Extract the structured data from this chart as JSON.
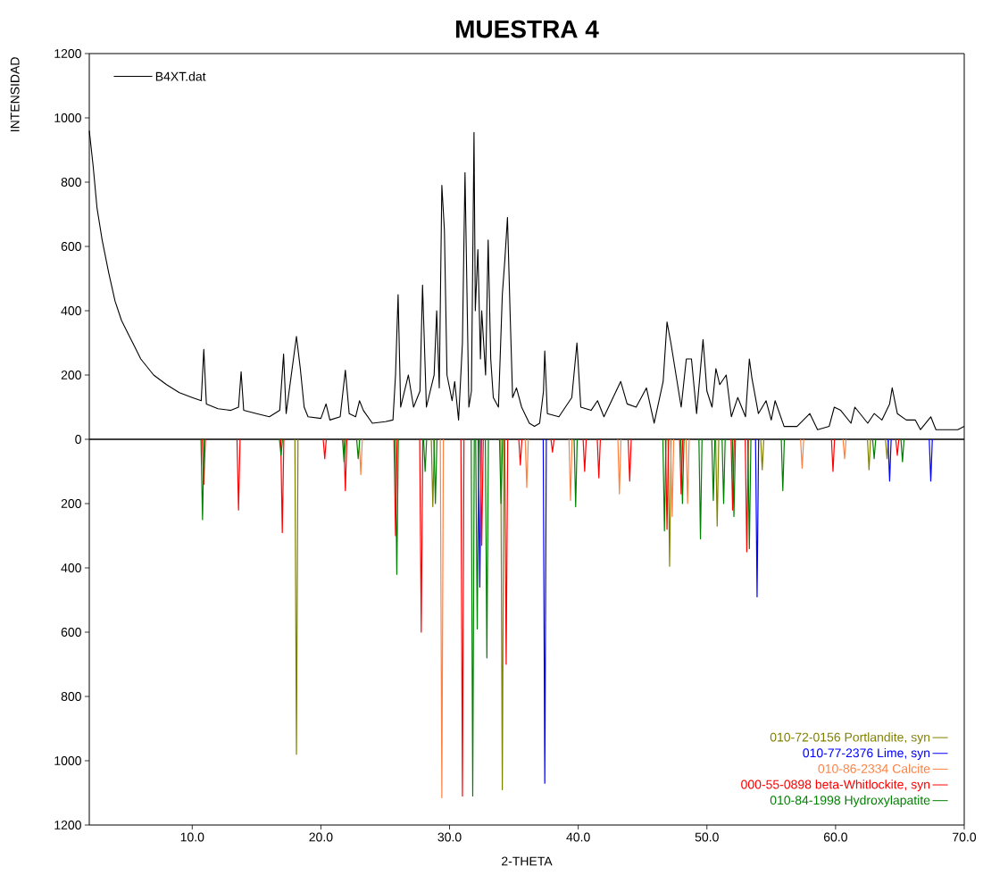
{
  "chart_data": {
    "type": "line",
    "title": "MUESTRA 4",
    "xlabel": "2-THETA",
    "ylabel": "INTENSIDAD",
    "xlim": [
      2,
      70
    ],
    "ylim": [
      -1200,
      1200
    ],
    "xticks": [
      {
        "value": 10,
        "label": "10.0"
      },
      {
        "value": 20,
        "label": "20.0"
      },
      {
        "value": 30,
        "label": "30.0"
      },
      {
        "value": 40,
        "label": "40.0"
      },
      {
        "value": 50,
        "label": "50.0"
      },
      {
        "value": 60,
        "label": "60.0"
      },
      {
        "value": 70,
        "label": "70.0"
      }
    ],
    "yticks": [
      {
        "value": -1200,
        "label": "1200"
      },
      {
        "value": -1000,
        "label": "1000"
      },
      {
        "value": -800,
        "label": "800"
      },
      {
        "value": -600,
        "label": "600"
      },
      {
        "value": -400,
        "label": "400"
      },
      {
        "value": -200,
        "label": "200"
      },
      0,
      200,
      400,
      600,
      800,
      1000,
      1200
    ],
    "legend": "bottom right",
    "grid": false,
    "marker": "none",
    "line_style": "solid",
    "ref_lines": [
      {
        "axis": "y",
        "value": 0,
        "color": "#000000"
      }
    ],
    "series": [
      {
        "name": "B4XT.dat",
        "color": "#000000",
        "x": [
          2.0,
          2.3,
          2.6,
          3.0,
          3.5,
          4.0,
          4.5,
          5.0,
          5.5,
          6,
          7,
          8,
          9,
          10,
          10.7,
          10.9,
          11.1,
          12,
          13,
          13.6,
          13.8,
          14,
          15,
          16,
          16.8,
          17.1,
          17.3,
          17.7,
          18.1,
          18.4,
          18.7,
          19,
          20,
          20.4,
          20.7,
          21.5,
          21.9,
          22.2,
          22.7,
          23.0,
          23.3,
          24,
          25,
          25.6,
          25.8,
          26.0,
          26.2,
          26.8,
          27.2,
          27.7,
          27.9,
          28.2,
          28.8,
          29.0,
          29.2,
          29.4,
          29.6,
          29.8,
          30.2,
          30.4,
          30.7,
          31.0,
          31.2,
          31.5,
          31.7,
          31.9,
          32.0,
          32.2,
          32.4,
          32.5,
          32.8,
          33.0,
          33.2,
          33.4,
          33.8,
          34.1,
          34.3,
          34.5,
          34.7,
          34.9,
          35.2,
          35.6,
          36.2,
          36.6,
          37.0,
          37.3,
          37.4,
          37.6,
          38.5,
          39.5,
          39.9,
          40.2,
          41,
          41.5,
          42,
          43.3,
          43.8,
          44.5,
          45.3,
          45.9,
          46.6,
          46.9,
          47.2,
          47.6,
          48.0,
          48.4,
          48.8,
          49.2,
          49.7,
          50.0,
          50.4,
          50.7,
          51.0,
          51.5,
          51.9,
          52.4,
          53.0,
          53.3,
          53.5,
          54,
          54.6,
          55,
          55.3,
          56,
          57,
          58,
          58.6,
          59.5,
          59.9,
          60.4,
          61.2,
          61.5,
          62.5,
          63.0,
          63.6,
          64.2,
          64.4,
          64.8,
          65.5,
          66.2,
          66.6,
          67.4,
          67.8,
          68.5,
          69.5,
          70
        ],
        "values": [
          960,
          850,
          720,
          620,
          520,
          430,
          370,
          330,
          290,
          250,
          200,
          170,
          145,
          130,
          120,
          280,
          110,
          95,
          90,
          100,
          210,
          90,
          80,
          70,
          90,
          265,
          80,
          200,
          320,
          220,
          100,
          70,
          65,
          110,
          60,
          70,
          215,
          80,
          70,
          120,
          90,
          50,
          55,
          60,
          200,
          450,
          100,
          200,
          100,
          150,
          480,
          100,
          200,
          400,
          160,
          790,
          650,
          200,
          120,
          180,
          60,
          300,
          830,
          100,
          150,
          955,
          400,
          590,
          250,
          400,
          200,
          620,
          250,
          130,
          100,
          450,
          560,
          690,
          400,
          130,
          160,
          100,
          50,
          40,
          50,
          150,
          275,
          80,
          70,
          130,
          300,
          100,
          90,
          120,
          70,
          180,
          110,
          100,
          160,
          50,
          180,
          365,
          300,
          200,
          100,
          250,
          250,
          80,
          310,
          150,
          100,
          220,
          170,
          200,
          70,
          130,
          70,
          250,
          190,
          80,
          120,
          60,
          120,
          40,
          40,
          80,
          30,
          40,
          100,
          90,
          50,
          100,
          50,
          80,
          60,
          110,
          160,
          80,
          60,
          60,
          30,
          70,
          30,
          30,
          30,
          40
        ]
      },
      {
        "name": "010-72-0156 Portlandite, syn",
        "color": "#808000",
        "x": [
          17.98,
          18.1,
          18.22,
          18.23,
          28.58,
          28.7,
          28.82,
          28.83,
          33.98,
          34.1,
          34.22,
          34.23,
          46.98,
          47.1,
          47.22,
          47.23,
          50.68,
          50.8,
          50.92,
          50.93,
          54.18,
          54.3,
          54.42,
          54.43,
          62.48,
          62.6,
          62.72,
          62.73,
          63.88,
          64.0,
          64.12
        ],
        "values": [
          0,
          -980,
          0,
          null,
          0,
          -210,
          0,
          null,
          0,
          -1090,
          0,
          null,
          0,
          -395,
          0,
          null,
          0,
          -270,
          0,
          null,
          0,
          -95,
          0,
          null,
          0,
          -95,
          0,
          null,
          0,
          -60,
          0
        ]
      },
      {
        "name": "010-77-2376 Lime, syn",
        "color": "#0000ff",
        "x": [
          32.23,
          32.35,
          32.47,
          32.48,
          37.28,
          37.4,
          37.52,
          37.53,
          53.78,
          53.9,
          54.02,
          54.03,
          64.08,
          64.2,
          64.32,
          64.33,
          67.28,
          67.4,
          67.52
        ],
        "values": [
          0,
          -460,
          0,
          null,
          0,
          -1070,
          0,
          null,
          0,
          -490,
          0,
          null,
          0,
          -130,
          0,
          null,
          0,
          -130,
          0
        ]
      },
      {
        "name": "010-86-2334 Calcite",
        "color": "#ff8040",
        "x": [
          22.98,
          23.1,
          23.22,
          23.23,
          29.28,
          29.4,
          29.52,
          29.53,
          35.88,
          36.0,
          36.12,
          36.13,
          39.28,
          39.4,
          39.52,
          39.53,
          43.08,
          43.2,
          43.32,
          43.33,
          47.18,
          47.3,
          47.42,
          47.43,
          48.38,
          48.5,
          48.62,
          48.63,
          57.28,
          57.4,
          57.52,
          57.53,
          60.58,
          60.7,
          60.82
        ],
        "values": [
          0,
          -110,
          0,
          null,
          0,
          -1115,
          0,
          null,
          0,
          -150,
          0,
          null,
          0,
          -190,
          0,
          null,
          0,
          -170,
          0,
          null,
          0,
          -240,
          0,
          null,
          0,
          -200,
          0,
          null,
          0,
          -90,
          0,
          null,
          0,
          -60,
          0
        ]
      },
      {
        "name": "000-55-0898 beta-Whitlockite, syn",
        "color": "#ff0000",
        "x": [
          10.78,
          10.9,
          11.02,
          11.03,
          13.48,
          13.6,
          13.72,
          13.73,
          16.88,
          17.0,
          17.12,
          17.13,
          20.18,
          20.3,
          20.42,
          20.43,
          21.78,
          21.9,
          22.02,
          22.03,
          25.68,
          25.8,
          25.92,
          25.93,
          27.68,
          27.8,
          27.92,
          27.93,
          30.88,
          31.0,
          31.12,
          31.13,
          32.38,
          32.5,
          32.62,
          32.63,
          34.28,
          34.4,
          34.52,
          34.53,
          35.38,
          35.5,
          35.62,
          35.63,
          37.88,
          38.0,
          38.12,
          38.13,
          40.38,
          40.5,
          40.62,
          40.63,
          41.48,
          41.6,
          41.72,
          41.73,
          43.88,
          44.0,
          44.12,
          44.13,
          46.78,
          46.9,
          47.02,
          47.03,
          47.88,
          48.0,
          48.12,
          48.13,
          51.88,
          52.0,
          52.12,
          52.13,
          52.98,
          53.1,
          53.22,
          53.23,
          59.68,
          59.8,
          59.92,
          59.93,
          64.68,
          64.8,
          64.92
        ],
        "values": [
          0,
          -140,
          0,
          null,
          0,
          -220,
          0,
          null,
          0,
          -290,
          0,
          null,
          0,
          -60,
          0,
          null,
          0,
          -160,
          0,
          null,
          0,
          -300,
          0,
          null,
          0,
          -600,
          0,
          null,
          0,
          -1110,
          0,
          null,
          0,
          -330,
          0,
          null,
          0,
          -700,
          0,
          null,
          0,
          -80,
          0,
          null,
          0,
          -40,
          0,
          null,
          0,
          -100,
          0,
          null,
          0,
          -120,
          0,
          null,
          0,
          -130,
          0,
          null,
          0,
          -280,
          0,
          null,
          0,
          -170,
          0,
          null,
          0,
          -220,
          0,
          null,
          0,
          -350,
          0,
          null,
          0,
          -100,
          0,
          null,
          0,
          -50,
          0
        ]
      },
      {
        "name": "010-84-1998 Hydroxylapatite",
        "color": "#008000",
        "x": [
          10.68,
          10.8,
          10.92,
          10.93,
          16.78,
          16.9,
          17.02,
          17.03,
          21.68,
          21.8,
          21.92,
          21.93,
          22.78,
          22.9,
          23.02,
          23.03,
          25.78,
          25.9,
          26.02,
          26.03,
          27.98,
          28.1,
          28.22,
          28.23,
          28.78,
          28.9,
          29.02,
          29.03,
          31.68,
          31.8,
          31.92,
          31.93,
          32.03,
          32.15,
          32.27,
          32.28,
          32.78,
          32.9,
          33.02,
          33.03,
          33.88,
          34.0,
          34.12,
          34.13,
          39.68,
          39.8,
          39.92,
          39.93,
          46.58,
          46.7,
          46.82,
          46.83,
          47.98,
          48.1,
          48.22,
          48.23,
          49.38,
          49.5,
          49.62,
          49.63,
          50.38,
          50.5,
          50.62,
          50.63,
          51.18,
          51.3,
          51.42,
          51.43,
          51.98,
          52.1,
          52.22,
          52.23,
          53.18,
          53.3,
          53.42,
          53.43,
          55.78,
          55.9,
          56.02,
          56.03,
          62.88,
          63.0,
          63.12,
          63.13,
          65.08,
          65.2,
          65.32
        ],
        "values": [
          0,
          -250,
          0,
          null,
          0,
          -50,
          0,
          null,
          0,
          -70,
          0,
          null,
          0,
          -60,
          0,
          null,
          0,
          -420,
          0,
          null,
          0,
          -100,
          0,
          null,
          0,
          -200,
          0,
          null,
          0,
          -1110,
          0,
          null,
          0,
          -590,
          0,
          null,
          0,
          -680,
          0,
          null,
          0,
          -200,
          0,
          null,
          0,
          -210,
          0,
          null,
          0,
          -285,
          0,
          null,
          0,
          -200,
          0,
          null,
          0,
          -310,
          0,
          null,
          0,
          -190,
          0,
          null,
          0,
          -200,
          0,
          null,
          0,
          -240,
          0,
          null,
          0,
          -340,
          0,
          null,
          0,
          -160,
          0,
          null,
          0,
          -60,
          0,
          null,
          0,
          -70,
          0
        ]
      }
    ]
  }
}
